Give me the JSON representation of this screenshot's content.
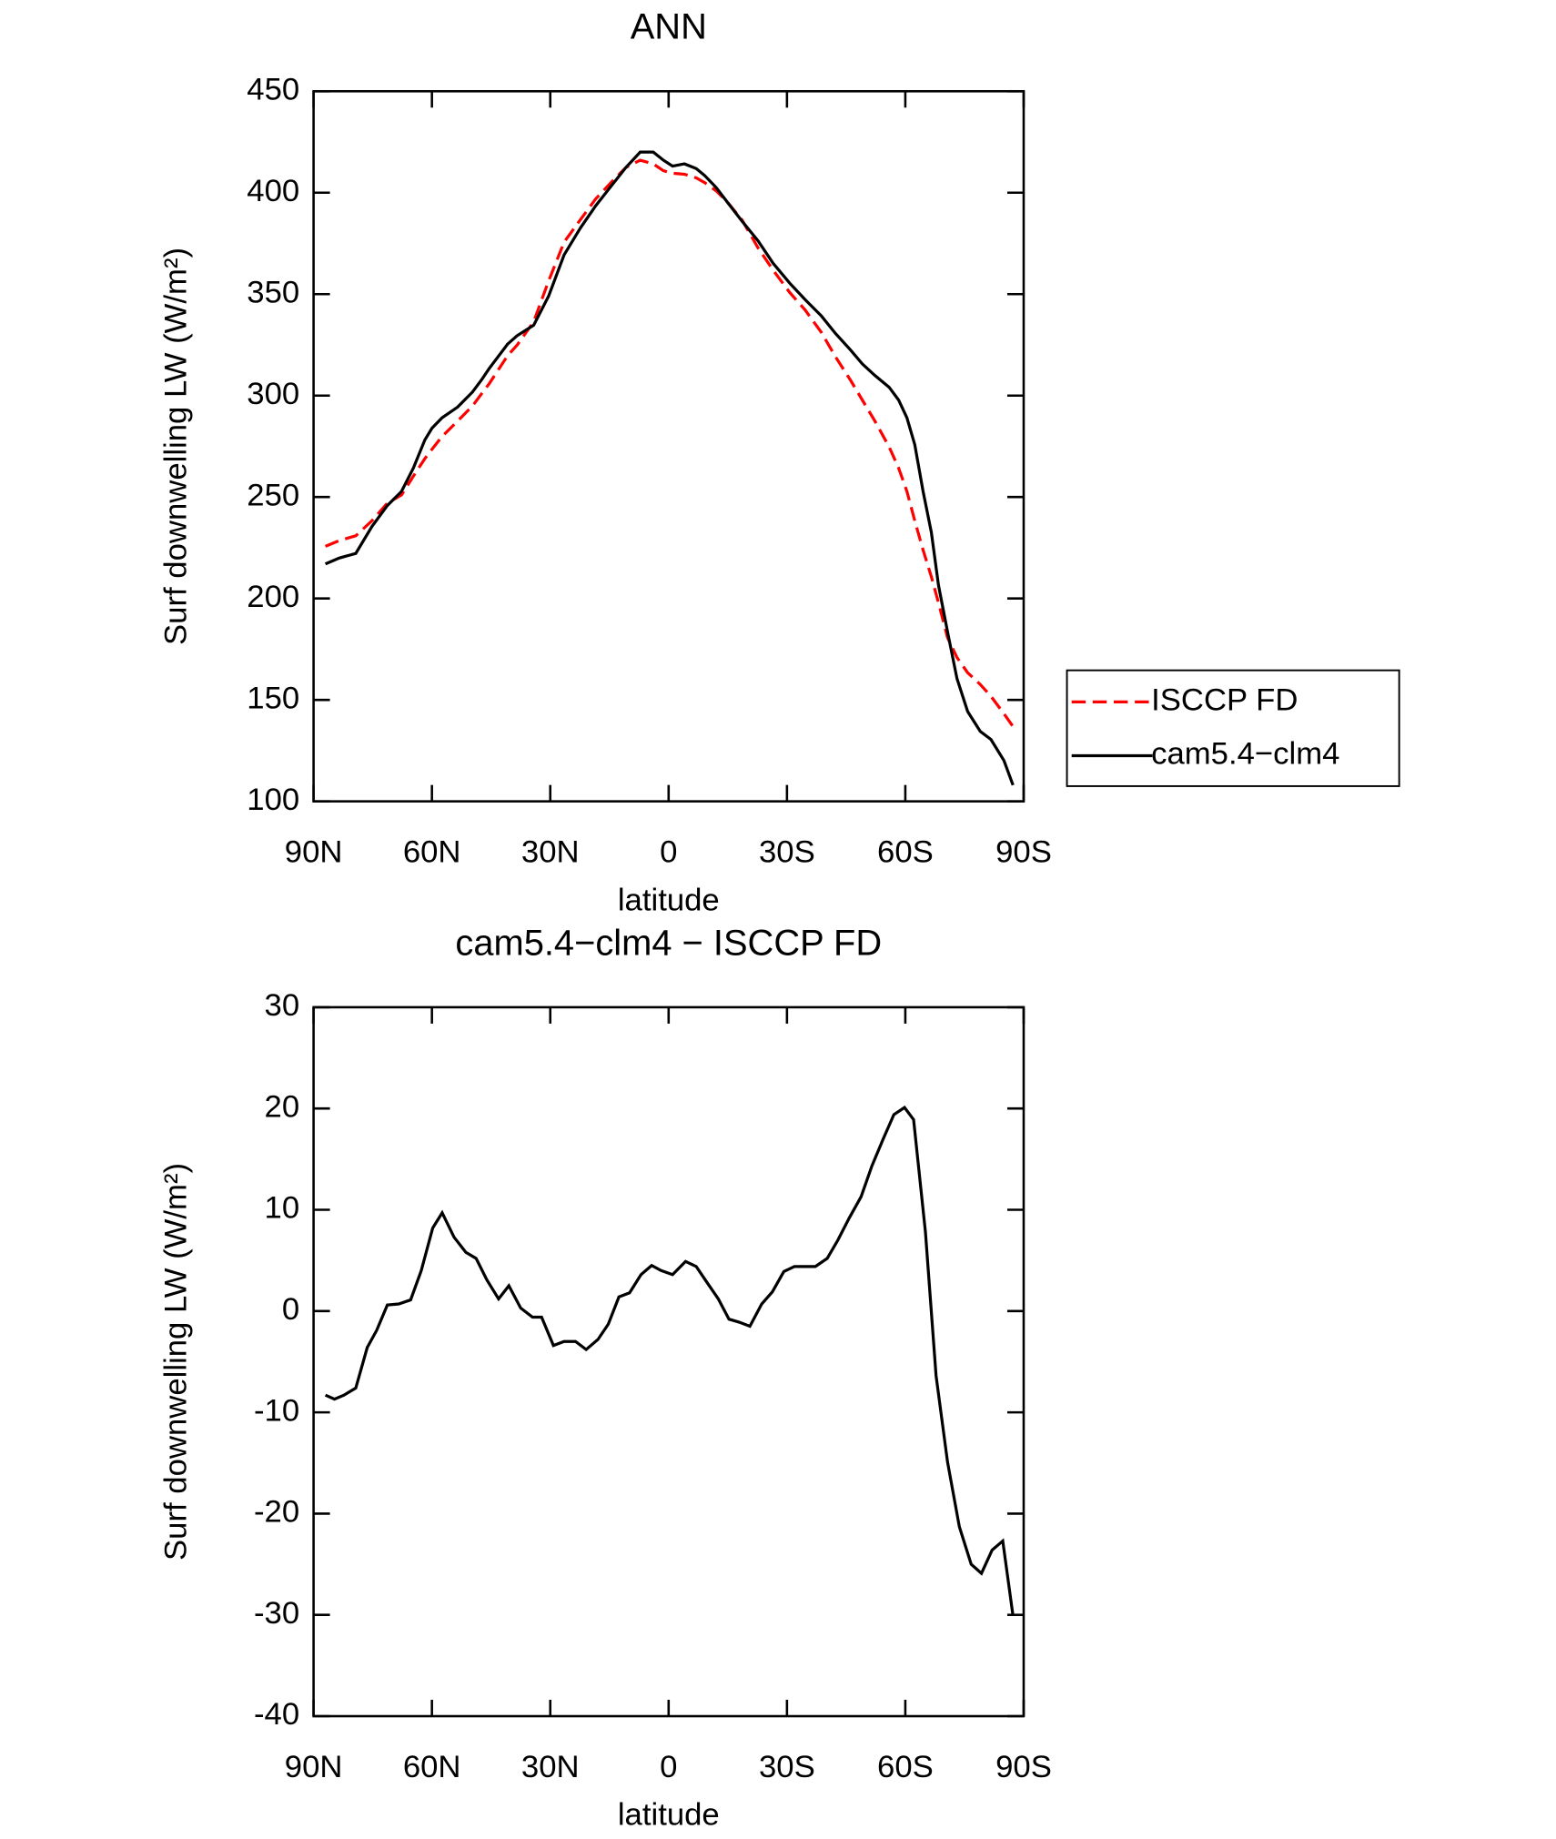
{
  "chart_data": [
    {
      "type": "line",
      "title": "ANN",
      "x_label": "latitude",
      "y_label": "Surf downwelling LW (W/m²)",
      "x": [
        87.0,
        83.5,
        79.3,
        75.2,
        71.3,
        67.7,
        64.7,
        61.8,
        60.0,
        57.4,
        53.5,
        49.7,
        47.3,
        45.5,
        40.8,
        38.4,
        34.2,
        30.4,
        26.5,
        22.4,
        18.5,
        14.3,
        10.8,
        7.2,
        3.9,
        1.3,
        -1.0,
        -4.0,
        -7.0,
        -9.1,
        -12.0,
        -14.7,
        -18.6,
        -22.7,
        -26.5,
        -30.7,
        -34.6,
        -38.7,
        -42.3,
        -46.1,
        -49.1,
        -52.3,
        -55.9,
        -58.3,
        -60.4,
        -62.4,
        -64.5,
        -66.6,
        -68.4,
        -70.7,
        -73.1,
        -75.8,
        -79.0,
        -81.7,
        -85.0,
        -87.3
      ],
      "series": [
        {
          "name": "ISCCP FD",
          "color": "#ff0000",
          "linestyle": "dashed",
          "values": [
            225.7,
            228.5,
            230.9,
            238.3,
            247.0,
            251.0,
            260.3,
            268.9,
            273.5,
            279.9,
            287.4,
            294.9,
            301.2,
            305.8,
            319.7,
            324.9,
            336.4,
            356.6,
            375.6,
            386.6,
            396.9,
            405.6,
            412.5,
            416.0,
            414.2,
            410.8,
            409.6,
            409.1,
            407.3,
            405.0,
            401.0,
            395.8,
            386.6,
            372.7,
            361.8,
            350.8,
            342.2,
            331.2,
            319.1,
            307.6,
            297.8,
            287.4,
            274.7,
            264.3,
            252.8,
            238.3,
            223.9,
            210.7,
            198.0,
            180.7,
            170.9,
            163.4,
            157.6,
            151.8,
            143.2,
            136.9
          ]
        },
        {
          "name": "cam5.4−clm4",
          "color": "#000000",
          "linestyle": "solid",
          "values": [
            217.0,
            219.9,
            222.2,
            235.5,
            245.8,
            252.8,
            264.3,
            278.1,
            283.9,
            289.1,
            294.3,
            301.8,
            308.1,
            313.3,
            325.4,
            329.5,
            334.7,
            349.1,
            369.3,
            382.5,
            393.5,
            403.9,
            412.5,
            420.0,
            420.0,
            416.0,
            413.1,
            414.2,
            411.9,
            408.5,
            402.7,
            395.8,
            386.0,
            376.2,
            365.2,
            355.4,
            347.3,
            339.3,
            330.6,
            322.5,
            315.6,
            309.9,
            304.1,
            297.8,
            289.1,
            275.8,
            252.8,
            232.6,
            206.6,
            183.6,
            160.5,
            144.3,
            134.5,
            130.5,
            120.1,
            108.0
          ]
        }
      ],
      "xlim": [
        90,
        -90
      ],
      "xticks": [
        {
          "value": 90,
          "label": "90N"
        },
        {
          "value": 60,
          "label": "60N"
        },
        {
          "value": 30,
          "label": "30N"
        },
        0,
        {
          "value": -30,
          "label": "30S"
        },
        {
          "value": -60,
          "label": "60S"
        },
        {
          "value": -90,
          "label": "90S"
        }
      ],
      "ylim": [
        100,
        450
      ],
      "yticks": [
        100,
        150,
        200,
        250,
        300,
        350,
        400,
        450
      ],
      "legend": "right"
    },
    {
      "type": "line",
      "title": "cam5.4−clm4 − ISCCP FD",
      "x_label": "latitude",
      "y_label": "Surf downwelling LW (W/m²)",
      "x": [
        87.0,
        84.7,
        82.3,
        79.3,
        76.4,
        74.0,
        71.3,
        68.4,
        65.4,
        62.7,
        59.8,
        57.4,
        54.4,
        51.4,
        48.8,
        46.1,
        43.1,
        40.5,
        37.5,
        34.5,
        32.2,
        29.2,
        26.5,
        23.6,
        20.9,
        17.9,
        15.3,
        12.6,
        9.9,
        7.0,
        4.3,
        1.9,
        -1.0,
        -4.3,
        -7.0,
        -9.6,
        -12.6,
        -15.3,
        -17.9,
        -20.6,
        -23.6,
        -26.3,
        -29.2,
        -31.9,
        -34.6,
        -37.2,
        -40.2,
        -42.9,
        -45.8,
        -48.8,
        -51.5,
        -54.4,
        -57.1,
        -59.8,
        -62.1,
        -65.1,
        -67.8,
        -70.7,
        -73.7,
        -76.7,
        -79.3,
        -82.0,
        -84.7,
        -87.3
      ],
      "values": [
        -8.3,
        -8.7,
        -8.3,
        -7.6,
        -3.6,
        -1.9,
        0.6,
        0.7,
        1.1,
        4.0,
        8.2,
        9.7,
        7.3,
        5.8,
        5.2,
        3.1,
        1.2,
        2.5,
        0.3,
        -0.6,
        -0.6,
        -3.4,
        -3.0,
        -3.0,
        -3.8,
        -2.8,
        -1.3,
        1.4,
        1.8,
        3.6,
        4.5,
        4.0,
        3.6,
        4.9,
        4.4,
        2.9,
        1.2,
        -0.8,
        -1.1,
        -1.5,
        0.7,
        1.9,
        3.9,
        4.4,
        4.4,
        4.4,
        5.2,
        7.0,
        9.2,
        11.3,
        14.3,
        17.0,
        19.4,
        20.1,
        18.9,
        7.8,
        -6.4,
        -14.9,
        -21.3,
        -25.0,
        -25.9,
        -23.6,
        -22.7,
        -30.1
      ],
      "color": "#000000",
      "xlim": [
        90,
        -90
      ],
      "xticks": [
        {
          "value": 90,
          "label": "90N"
        },
        {
          "value": 60,
          "label": "60N"
        },
        {
          "value": 30,
          "label": "30N"
        },
        0,
        {
          "value": -30,
          "label": "30S"
        },
        {
          "value": -60,
          "label": "60S"
        },
        {
          "value": -90,
          "label": "90S"
        }
      ],
      "ylim": [
        -40,
        30
      ],
      "yticks": [
        -40,
        -30,
        -20,
        -10,
        0,
        10,
        20,
        30
      ]
    }
  ]
}
